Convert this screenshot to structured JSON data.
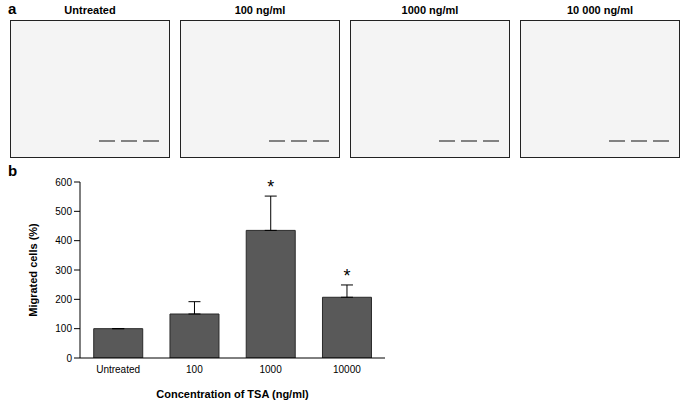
{
  "panel_a": {
    "label": "a",
    "image_titles": [
      "Untreated",
      "100 ng/ml",
      "1000 ng/ml",
      "10 000 ng/ml"
    ]
  },
  "chart_data": {
    "type": "bar",
    "panel_label": "b",
    "categories": [
      "Untreated",
      "100",
      "1000",
      "10000"
    ],
    "values": [
      100,
      150,
      435,
      207
    ],
    "errors": [
      0,
      42,
      117,
      42
    ],
    "color": "#595959",
    "ylim": [
      0,
      600
    ],
    "yticks": [
      0,
      100,
      200,
      300,
      400,
      500,
      600
    ],
    "y_label": "Migrated cells (%)",
    "x_label": "Concentration of TSA (ng/ml)",
    "grid": false,
    "annotations": [
      {
        "category": "1000",
        "text": "*"
      },
      {
        "category": "10000",
        "text": "*"
      }
    ]
  }
}
